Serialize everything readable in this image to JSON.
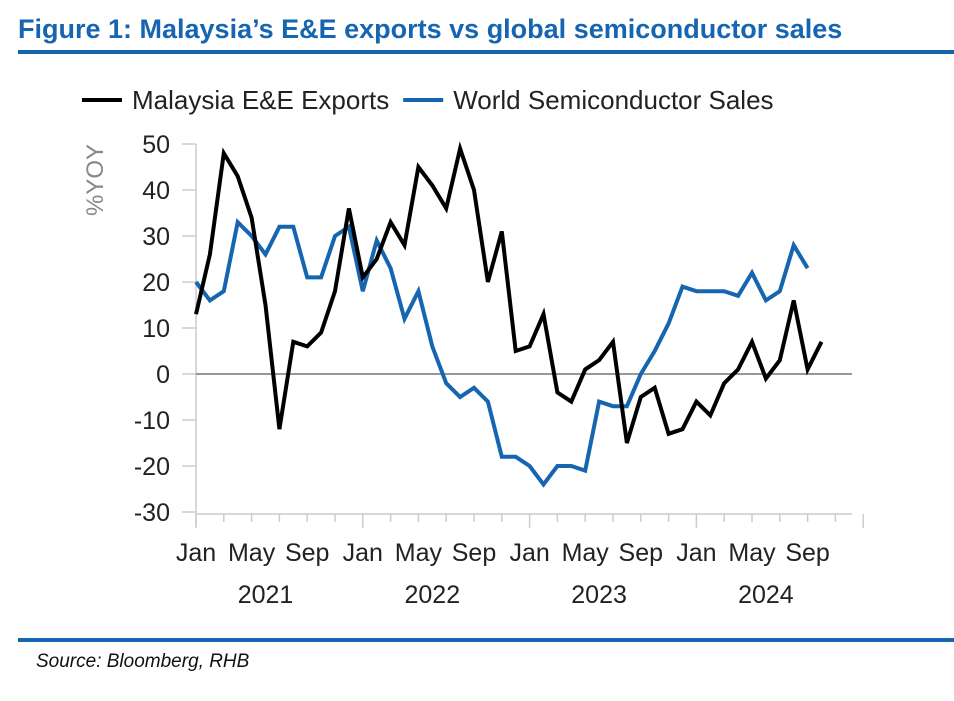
{
  "title": "Figure 1: Malaysia’s E&E exports vs global semiconductor sales",
  "source": "Source: Bloomberg, RHB",
  "chart_data": {
    "type": "line",
    "ylabel": "%YOY",
    "ylim": [
      -30,
      50
    ],
    "yticks": [
      50,
      40,
      30,
      20,
      10,
      0,
      -10,
      -20,
      -30
    ],
    "xticks": [
      "Jan",
      "May",
      "Sep",
      "Jan",
      "May",
      "Sep",
      "Jan",
      "May",
      "Sep",
      "Jan",
      "May",
      "Sep"
    ],
    "years": [
      "2021",
      "2022",
      "2023",
      "2024"
    ],
    "legend": "top",
    "x_start": "2021-01",
    "frequency": "monthly",
    "series": [
      {
        "name": "Malaysia E&E Exports",
        "color": "#000000",
        "values": [
          13,
          26,
          48,
          43,
          34,
          15,
          -12,
          7,
          6,
          9,
          18,
          36,
          21,
          25,
          33,
          28,
          45,
          41,
          36,
          49,
          40,
          20,
          31,
          5,
          6,
          13,
          -4,
          -6,
          1,
          3,
          7,
          -15,
          -5,
          -3,
          -13,
          -12,
          -6,
          -9,
          -2,
          1,
          7,
          -1,
          3,
          16,
          1,
          7
        ]
      },
      {
        "name": "World Semiconductor Sales",
        "color": "#1565b0",
        "values": [
          20,
          16,
          18,
          33,
          30,
          26,
          32,
          32,
          21,
          21,
          30,
          32,
          18,
          29,
          23,
          12,
          18,
          6,
          -2,
          -5,
          -3,
          -6,
          -18,
          -18,
          -20,
          -24,
          -20,
          -20,
          -21,
          -6,
          -7,
          -7,
          0,
          5,
          11,
          19,
          18,
          18,
          18,
          17,
          22,
          16,
          18,
          28,
          23
        ]
      }
    ]
  }
}
